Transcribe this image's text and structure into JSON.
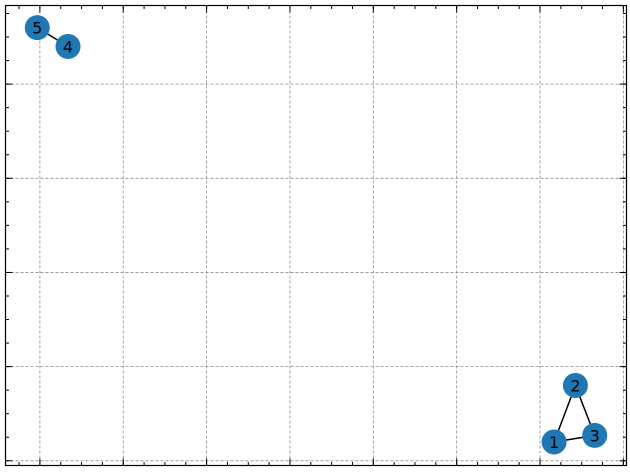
{
  "graph": {
    "node_color": "#1f77b4",
    "edge_color": "#000000",
    "nodes": [
      {
        "id": "1",
        "label": "1",
        "x": 0.927,
        "y": -1.21
      },
      {
        "id": "2",
        "label": "2",
        "x": 0.968,
        "y": -1.09
      },
      {
        "id": "3",
        "label": "3",
        "x": 1.005,
        "y": -1.196
      },
      {
        "id": "4",
        "label": "4",
        "x": -0.006,
        "y": -0.37
      },
      {
        "id": "5",
        "label": "5",
        "x": -0.065,
        "y": -0.33
      }
    ],
    "edges": [
      {
        "source": "5",
        "target": "4"
      },
      {
        "source": "2",
        "target": "1"
      },
      {
        "source": "2",
        "target": "3"
      },
      {
        "source": "1",
        "target": "3"
      }
    ]
  },
  "axes": {
    "xlim": [
      -0.126,
      1.066
    ],
    "ylim": [
      -1.26,
      -0.283
    ],
    "x_major_ticks": [
      -0.06,
      0.1,
      0.26,
      0.42,
      0.58,
      0.74,
      0.9,
      1.06
    ],
    "y_major_ticks": [
      -1.25,
      -1.05,
      -0.85,
      -0.65,
      -0.45,
      -0.25
    ],
    "grid": true
  }
}
